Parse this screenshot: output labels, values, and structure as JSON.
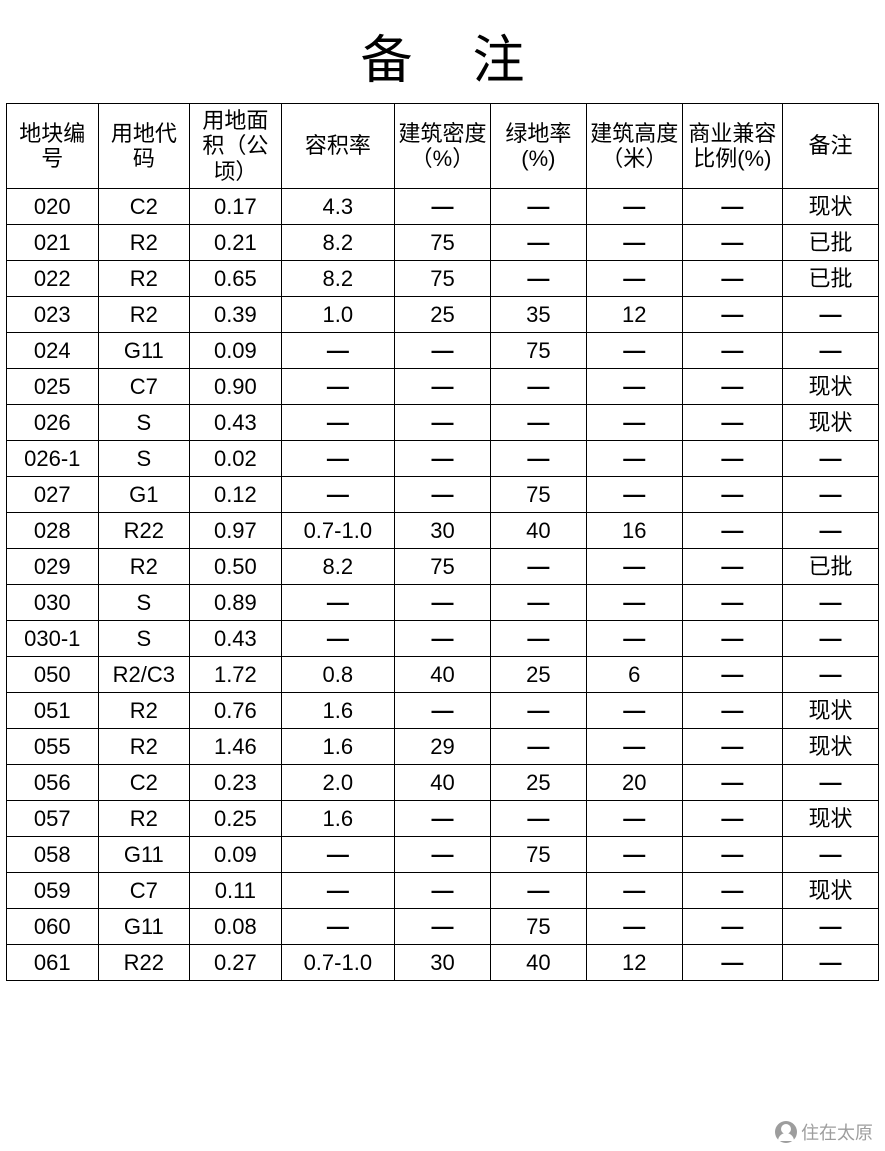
{
  "title": "备注",
  "dash": "—",
  "table": {
    "type": "table",
    "border_color": "#000000",
    "background_color": "#ffffff",
    "text_color": "#000000",
    "header_fontsize": 22,
    "cell_fontsize": 22,
    "columns": [
      "地块编号",
      "用地代码",
      "用地面积（公顷）",
      "容积率",
      "建筑密度（%）",
      "绿地率(%)",
      "建筑高度（米）",
      "商业兼容比例(%)",
      "备注"
    ],
    "column_widths_pct": [
      10.5,
      10.5,
      10.5,
      13,
      11,
      11,
      11,
      11.5,
      11
    ],
    "rows": [
      [
        "020",
        "C2",
        "0.17",
        "4.3",
        "—",
        "—",
        "—",
        "—",
        "现状"
      ],
      [
        "021",
        "R2",
        "0.21",
        "8.2",
        "75",
        "—",
        "—",
        "—",
        "已批"
      ],
      [
        "022",
        "R2",
        "0.65",
        "8.2",
        "75",
        "—",
        "—",
        "—",
        "已批"
      ],
      [
        "023",
        "R2",
        "0.39",
        "1.0",
        "25",
        "35",
        "12",
        "—",
        "—"
      ],
      [
        "024",
        "G11",
        "0.09",
        "—",
        "—",
        "75",
        "—",
        "—",
        "—"
      ],
      [
        "025",
        "C7",
        "0.90",
        "—",
        "—",
        "—",
        "—",
        "—",
        "现状"
      ],
      [
        "026",
        "S",
        "0.43",
        "—",
        "—",
        "—",
        "—",
        "—",
        "现状"
      ],
      [
        "026-1",
        "S",
        "0.02",
        "—",
        "—",
        "—",
        "—",
        "—",
        "—"
      ],
      [
        "027",
        "G1",
        "0.12",
        "—",
        "—",
        "75",
        "—",
        "—",
        "—"
      ],
      [
        "028",
        "R22",
        "0.97",
        "0.7-1.0",
        "30",
        "40",
        "16",
        "—",
        "—"
      ],
      [
        "029",
        "R2",
        "0.50",
        "8.2",
        "75",
        "—",
        "—",
        "—",
        "已批"
      ],
      [
        "030",
        "S",
        "0.89",
        "—",
        "—",
        "—",
        "—",
        "—",
        "—"
      ],
      [
        "030-1",
        "S",
        "0.43",
        "—",
        "—",
        "—",
        "—",
        "—",
        "—"
      ],
      [
        "050",
        "R2/C3",
        "1.72",
        "0.8",
        "40",
        "25",
        "6",
        "—",
        "—"
      ],
      [
        "051",
        "R2",
        "0.76",
        "1.6",
        "—",
        "—",
        "—",
        "—",
        "现状"
      ],
      [
        "055",
        "R2",
        "1.46",
        "1.6",
        "29",
        "—",
        "—",
        "—",
        "现状"
      ],
      [
        "056",
        "C2",
        "0.23",
        "2.0",
        "40",
        "25",
        "20",
        "—",
        "—"
      ],
      [
        "057",
        "R2",
        "0.25",
        "1.6",
        "—",
        "—",
        "—",
        "—",
        "现状"
      ],
      [
        "058",
        "G11",
        "0.09",
        "—",
        "—",
        "75",
        "—",
        "—",
        "—"
      ],
      [
        "059",
        "C7",
        "0.11",
        "—",
        "—",
        "—",
        "—",
        "—",
        "现状"
      ],
      [
        "060",
        "G11",
        "0.08",
        "—",
        "—",
        "75",
        "—",
        "—",
        "—"
      ],
      [
        "061",
        "R22",
        "0.27",
        "0.7-1.0",
        "30",
        "40",
        "12",
        "—",
        "—"
      ]
    ]
  },
  "watermark": {
    "text": "住在太原",
    "color": "#8d8d8d",
    "fontsize": 18
  }
}
